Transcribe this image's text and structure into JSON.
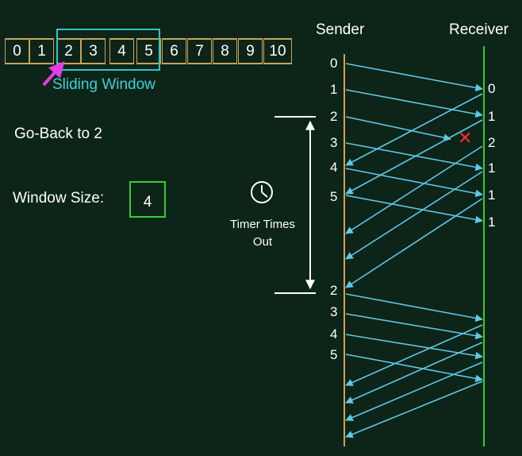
{
  "sequence": [
    "0",
    "1",
    "2",
    "3",
    "4",
    "5",
    "6",
    "7",
    "8",
    "9",
    "10"
  ],
  "window": {
    "label": "Sliding Window",
    "start": 2,
    "end": 5
  },
  "go_back_label": "Go-Back to 2",
  "window_size": {
    "label": "Window Size:",
    "value": "4"
  },
  "columns": {
    "sender": "Sender",
    "receiver": "Receiver"
  },
  "timer": {
    "line1": "Timer Times",
    "line2": "Out"
  },
  "sender_labels": [
    "0",
    "1",
    "2",
    "3",
    "4",
    "5",
    "2",
    "3",
    "4",
    "5"
  ],
  "receiver_labels": [
    "0",
    "1",
    "2",
    "1",
    "1",
    "1"
  ],
  "colors": {
    "sender_line": "#d9a24a",
    "receiver_line": "#33cc33",
    "arrow": "#5ec8e8",
    "window": "#2fc6c6",
    "pointer": "#e63be6",
    "lost": "#ff2a2a"
  }
}
